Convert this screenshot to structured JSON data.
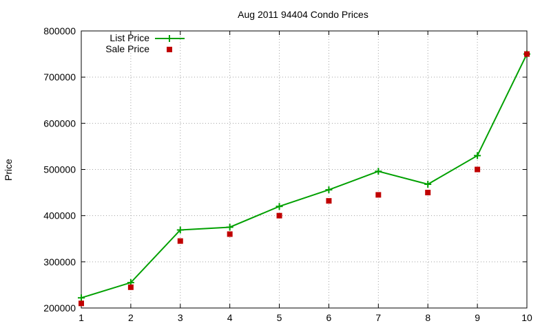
{
  "chart_data": {
    "type": "line",
    "title": "Aug 2011 94404 Condo Prices",
    "xlabel": "",
    "ylabel": "Price",
    "x": [
      1,
      2,
      3,
      4,
      5,
      6,
      7,
      8,
      9,
      10
    ],
    "x_ticks": [
      "1",
      "2",
      "3",
      "4",
      "5",
      "6",
      "7",
      "8",
      "9",
      "10"
    ],
    "y_ticks": [
      "200000",
      "300000",
      "400000",
      "500000",
      "600000",
      "700000",
      "800000"
    ],
    "xlim": [
      1,
      10
    ],
    "ylim": [
      200000,
      800000
    ],
    "grid": true,
    "legend_position": "top-left",
    "series": [
      {
        "name": "List Price",
        "style": "line-with-plus-markers",
        "color": "#00a000",
        "values": [
          222000,
          255000,
          369000,
          375000,
          420000,
          456000,
          496000,
          468000,
          530000,
          750000
        ]
      },
      {
        "name": "Sale Price",
        "style": "square-markers",
        "color": "#c00000",
        "values": [
          210000,
          245000,
          345000,
          360000,
          400000,
          432000,
          445000,
          450000,
          500000,
          750000
        ]
      }
    ]
  }
}
